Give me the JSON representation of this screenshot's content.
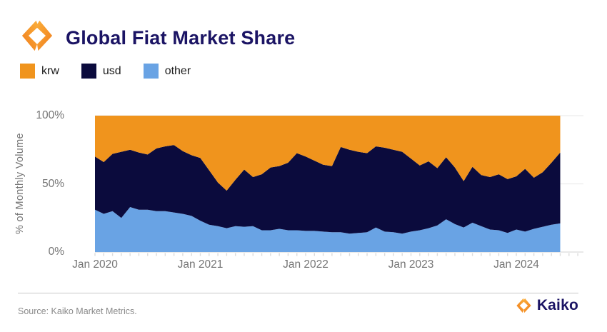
{
  "header": {
    "title": "Global Fiat Market Share",
    "logo": "kaiko-mark"
  },
  "legend": [
    {
      "label": "krw",
      "color": "#F0941D"
    },
    {
      "label": "usd",
      "color": "#0B0B3D"
    },
    {
      "label": "other",
      "color": "#69A3E4"
    }
  ],
  "chart_data": {
    "type": "area",
    "stacked": true,
    "title": "Global Fiat Market Share",
    "ylabel": "% of Monthly Volume",
    "xlabel": "",
    "unit": "%",
    "ylim": [
      0,
      100
    ],
    "grid": "horizontal",
    "legend_position": "top-left",
    "yticks": [
      {
        "label": "0%",
        "value": 0
      },
      {
        "label": "50%",
        "value": 50
      },
      {
        "label": "100%",
        "value": 100
      }
    ],
    "xticks": [
      "Jan 2020",
      "Jan 2021",
      "Jan 2022",
      "Jan 2023",
      "Jan 2024"
    ],
    "xtick_indices": [
      0,
      12,
      24,
      36,
      48
    ],
    "x": [
      "Jan 2020",
      "Feb 2020",
      "Mar 2020",
      "Apr 2020",
      "May 2020",
      "Jun 2020",
      "Jul 2020",
      "Aug 2020",
      "Sep 2020",
      "Oct 2020",
      "Nov 2020",
      "Dec 2020",
      "Jan 2021",
      "Feb 2021",
      "Mar 2021",
      "Apr 2021",
      "May 2021",
      "Jun 2021",
      "Jul 2021",
      "Aug 2021",
      "Sep 2021",
      "Oct 2021",
      "Nov 2021",
      "Dec 2021",
      "Jan 2022",
      "Feb 2022",
      "Mar 2022",
      "Apr 2022",
      "May 2022",
      "Jun 2022",
      "Jul 2022",
      "Aug 2022",
      "Sep 2022",
      "Oct 2022",
      "Nov 2022",
      "Dec 2022",
      "Jan 2023",
      "Feb 2023",
      "Mar 2023",
      "Apr 2023",
      "May 2023",
      "Jun 2023",
      "Jul 2023",
      "Aug 2023",
      "Sep 2023",
      "Oct 2023",
      "Nov 2023",
      "Dec 2023",
      "Jan 2024",
      "Feb 2024",
      "Mar 2024",
      "Apr 2024",
      "May 2024",
      "Jun 2024"
    ],
    "series": [
      {
        "name": "other",
        "color": "#69A3E4",
        "values": [
          31,
          28,
          30,
          25,
          33,
          31,
          31,
          30,
          30,
          29,
          28,
          26.5,
          23,
          20,
          19,
          17.5,
          19,
          18.5,
          19,
          16,
          16,
          17,
          16,
          16,
          15.5,
          15.5,
          15,
          14.5,
          14.5,
          13.5,
          14,
          14.5,
          18,
          15,
          14.5,
          13.5,
          15,
          16,
          17.5,
          19.5,
          24,
          20.5,
          18,
          21.5,
          19,
          16.5,
          16,
          14,
          16.5,
          15,
          17,
          18.5,
          20,
          21
        ]
      },
      {
        "name": "usd",
        "color": "#0B0B3D",
        "values": [
          39,
          38,
          42,
          48.5,
          42,
          42,
          40.5,
          46,
          47.5,
          49.5,
          46,
          44.5,
          46,
          40,
          32,
          27.5,
          34,
          42,
          36,
          41,
          46,
          46,
          49.5,
          56.5,
          54.5,
          51.5,
          49,
          48.5,
          62.5,
          61.5,
          59.5,
          58,
          59.5,
          61.5,
          60.5,
          60,
          53.5,
          47.5,
          49,
          42,
          45.5,
          41.5,
          34,
          41,
          37.5,
          38.5,
          41,
          39.5,
          39,
          46,
          37.5,
          40,
          45.5,
          52
        ]
      },
      {
        "name": "krw",
        "color": "#F0941D",
        "values": [
          30,
          34,
          28,
          26.5,
          25,
          27,
          28.5,
          24,
          22.5,
          21.5,
          26,
          29,
          31,
          40,
          49,
          55,
          47,
          39.5,
          45,
          43,
          38,
          37,
          34.5,
          27.5,
          30,
          33,
          36,
          37,
          23,
          25,
          26.5,
          27.5,
          22.5,
          23.5,
          25,
          26.5,
          31.5,
          36.5,
          33.5,
          38.5,
          30.5,
          38,
          48,
          37.5,
          43.5,
          45,
          43,
          46.5,
          44.5,
          39,
          45.5,
          41.5,
          34.5,
          27
        ]
      }
    ]
  },
  "footer": {
    "source": "Source: Kaiko Market Metrics.",
    "brand": "Kaiko"
  }
}
